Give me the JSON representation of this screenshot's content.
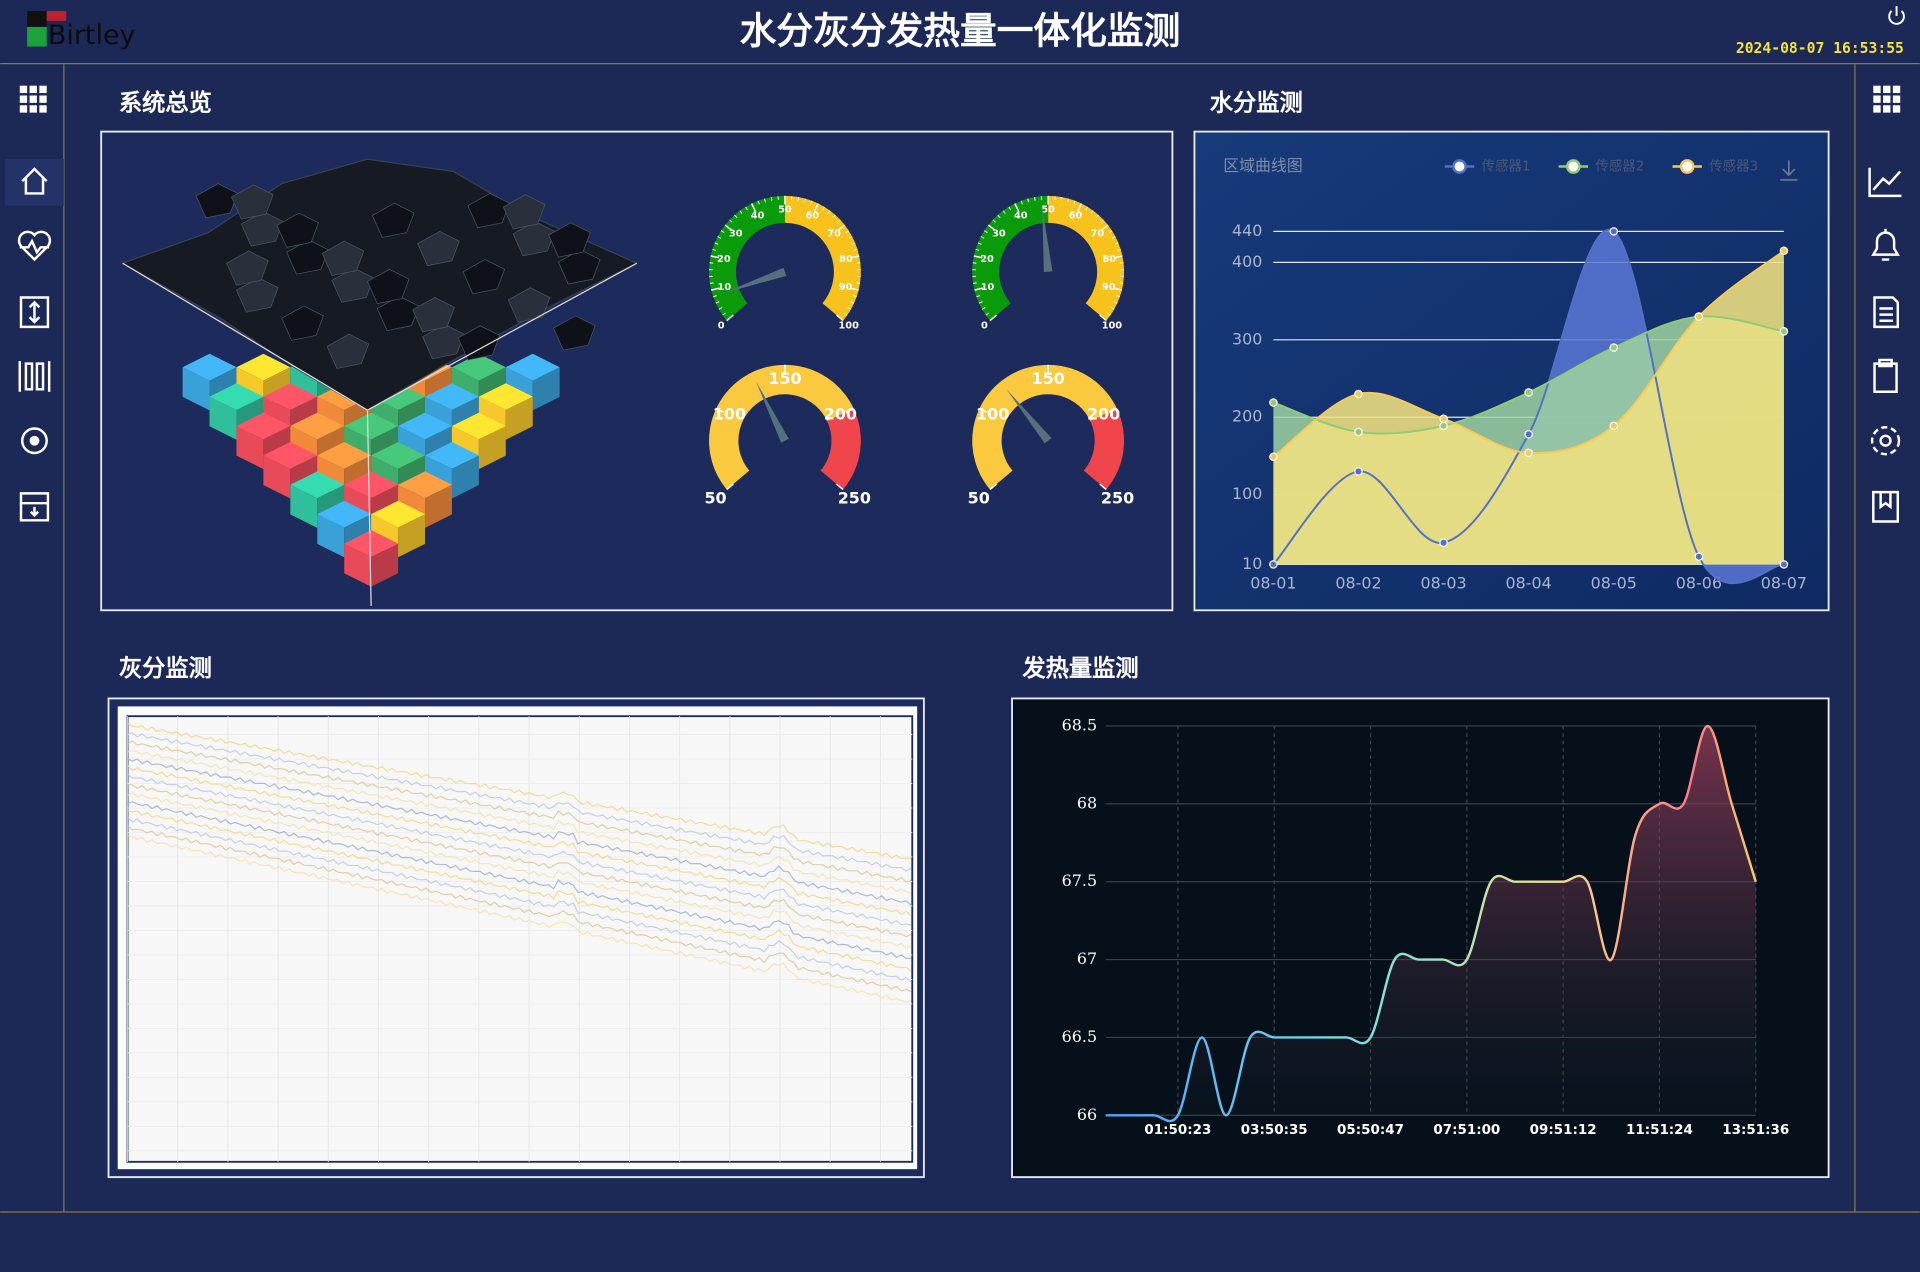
{
  "header": {
    "logo": "Birtley",
    "title": "水分灰分发热量一体化监测",
    "datetime": "2024-08-07 16:53:55"
  },
  "panels": [
    "系统总览",
    "水分监测",
    "灰分监测",
    "发热量监测"
  ],
  "chart_data": [
    {
      "type": "gauge",
      "value": 8,
      "ylim": [
        0,
        100
      ],
      "yticks": [
        0,
        10,
        20,
        30,
        40,
        50,
        60,
        70,
        80,
        90,
        100
      ],
      "bands": [
        {
          "to": 50,
          "color": "#0a9b0a"
        },
        {
          "to": 100,
          "color": "#f7c21c"
        }
      ]
    },
    {
      "type": "gauge",
      "value": 48,
      "ylim": [
        0,
        100
      ],
      "yticks": [
        0,
        10,
        20,
        30,
        40,
        50,
        60,
        70,
        80,
        90,
        100
      ],
      "bands": [
        {
          "to": 50,
          "color": "#0a9b0a"
        },
        {
          "to": 100,
          "color": "#f7c21c"
        }
      ]
    },
    {
      "type": "gauge",
      "value": 130,
      "ylim": [
        50,
        250
      ],
      "yticks": [
        50,
        100,
        150,
        200,
        250
      ],
      "bands": [
        {
          "to": 200,
          "color": "#fbc93d"
        },
        {
          "to": 250,
          "color": "#f0454a"
        }
      ]
    },
    {
      "type": "gauge",
      "value": 120,
      "ylim": [
        50,
        250
      ],
      "yticks": [
        50,
        100,
        150,
        200,
        250
      ],
      "bands": [
        {
          "to": 200,
          "color": "#fbc93d"
        },
        {
          "to": 250,
          "color": "#f0454a"
        }
      ]
    },
    {
      "type": "area",
      "title": "区域曲线图",
      "categories": [
        "08-01",
        "08-02",
        "08-03",
        "08-04",
        "08-05",
        "08-06",
        "08-07"
      ],
      "series": [
        {
          "name": "传感器1",
          "color": "#5470c6",
          "values": [
            10,
            130,
            38,
            178,
            440,
            20,
            10
          ]
        },
        {
          "name": "传感器2",
          "color": "#91cc75",
          "values": [
            219,
            181,
            189,
            232,
            290,
            330,
            311
          ]
        },
        {
          "name": "传感器3",
          "color": "#fac858",
          "values": [
            149,
            230,
            198,
            154,
            189,
            330,
            415
          ]
        }
      ],
      "ylim": [
        10,
        440
      ],
      "yticks": [
        10,
        100,
        200,
        300,
        400,
        440
      ],
      "grid": true
    },
    {
      "type": "line",
      "categories": [
        null,
        null,
        null,
        "01:50:23",
        null,
        null,
        null,
        "03:50:35",
        null,
        null,
        null,
        "05:50:47",
        null,
        null,
        null,
        "07:51:00",
        null,
        null,
        null,
        "09:51:12",
        null,
        null,
        null,
        "11:51:24",
        null,
        null,
        null,
        "13:51:36"
      ],
      "values": [
        66,
        66,
        66,
        66,
        66.5,
        66,
        66.5,
        66.5,
        66.5,
        66.5,
        66.5,
        66.5,
        67,
        67,
        67,
        67,
        67.5,
        67.5,
        67.5,
        67.5,
        67.5,
        67,
        67.8,
        68,
        68,
        68.5,
        68,
        67.5
      ],
      "ylim": [
        66,
        68.5
      ],
      "yticks": [
        66,
        66.5,
        67,
        67.5,
        68,
        68.5
      ],
      "grid": true
    }
  ]
}
